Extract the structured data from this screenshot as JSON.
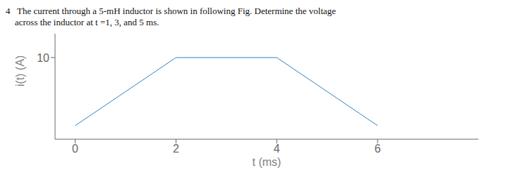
{
  "chart_data": {
    "type": "line",
    "title": "4   The current through a 5-mH inductor is shown in following Fig. Determine the voltage",
    "subtitle": "    across the inductor at t =1, 3, and 5 ms.",
    "x_label": "t (ms)",
    "y_label": "i(t) (A)",
    "x": [
      0,
      2,
      4,
      6
    ],
    "values": [
      0,
      10,
      10,
      0
    ],
    "xlim": [
      -0.4,
      8.0
    ],
    "ylim": [
      -2.0,
      13.5
    ],
    "xticks": [
      0,
      2,
      4,
      6
    ],
    "yticks": [
      10
    ],
    "grid": false
  }
}
